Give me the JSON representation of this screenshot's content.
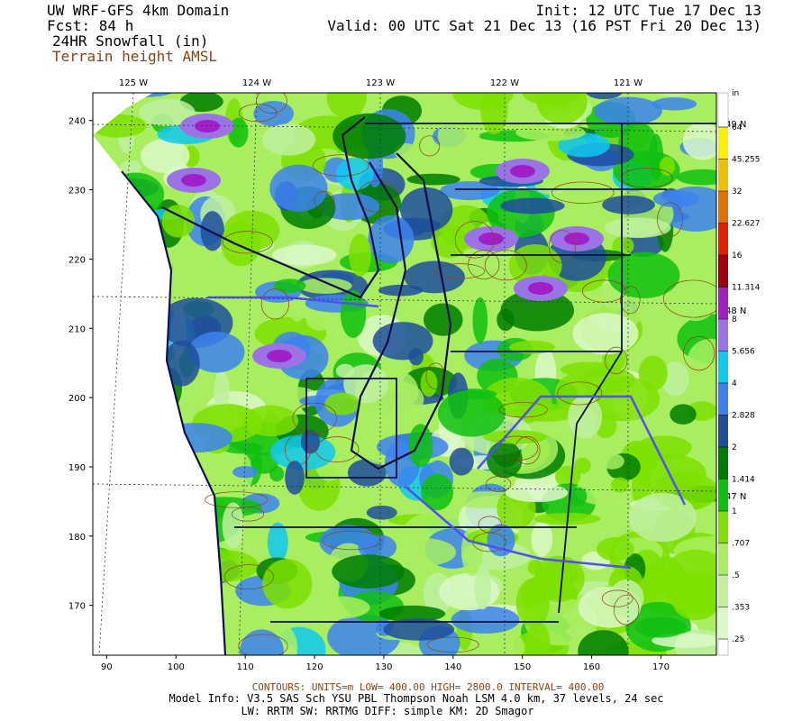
{
  "map": {
    "header": {
      "title": "UW WRF-GFS 4km Domain",
      "forecast": "Fcst:   84 h",
      "field": "24HR Snowfall (in)",
      "overlay": "Terrain height AMSL",
      "init": "Init: 12 UTC Tue 17 Dec 13",
      "valid": "Valid: 00 UTC Sat 21 Dec 13 (16 PST Fri 20 Dec 13)"
    },
    "xlim": [
      88,
      178
    ],
    "ylim": [
      162.8,
      244
    ],
    "xticks": [
      90,
      100,
      110,
      120,
      130,
      140,
      150,
      160,
      170
    ],
    "yticks": [
      170,
      180,
      190,
      200,
      210,
      220,
      230,
      240
    ],
    "longitudes": [
      "125 W",
      "124 W",
      "123 W",
      "122 W",
      "121 W"
    ],
    "latitudes": [
      "49 N",
      "48 N",
      "47 N"
    ],
    "colorbar": {
      "unit": "in",
      "ticks": [
        {
          "value": 0.25,
          "label": ".25"
        },
        {
          "value": 0.353,
          "label": ".353"
        },
        {
          "value": 0.5,
          "label": ".5"
        },
        {
          "value": 0.707,
          "label": ".707"
        },
        1,
        1.414,
        2,
        2.828,
        4,
        5.656,
        8,
        11.314,
        16,
        22.627,
        32,
        45.255,
        64
      ],
      "colors": [
        "#dcf8c8",
        "#bff0a0",
        "#a8ee60",
        "#7ee000",
        "#10c010",
        "#007c00",
        "#1e4e9c",
        "#3c82ee",
        "#10c8f0",
        "#9a74e4",
        "#a020c8",
        "#a00010",
        "#e02000",
        "#e07000",
        "#f0c000",
        "#f8f000"
      ]
    },
    "footer": {
      "contours": "CONTOURS:  UNITS=m  LOW=  400.00     HIGH=  2800.0     INTERVAL=   400.00",
      "model": "Model Info: V3.5     SAS Sch YSU PBL  Thompson      Noah LSM  4.0 km,   37 levels,    24 sec",
      "physics": "LW: RRTM  SW: RRTMG    DIFF: simple  KM: 2D Smagor"
    }
  }
}
